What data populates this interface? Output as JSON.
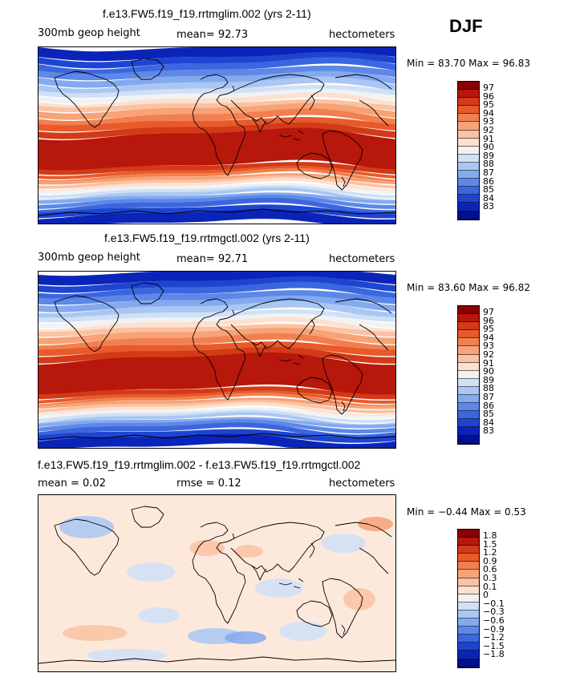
{
  "season_label": "DJF",
  "panels": [
    {
      "title": "f.e13.FW5.f19_f19.rrtmglim.002 (yrs 2-11)",
      "left_label": "300mb geop height",
      "center_label": "mean=  92.73",
      "right_label": "hectometers",
      "minmax": "Min =  83.70 Max =  96.83",
      "field": "absolute",
      "colorbar_colors": [
        "#8b0000",
        "#b8170b",
        "#d33a17",
        "#e85a2b",
        "#f2804f",
        "#f7a277",
        "#fbc2a3",
        "#fde0cf",
        "#f2f2f2",
        "#cfe0f7",
        "#a9c7f2",
        "#84a9ee",
        "#5d88e8",
        "#3b66df",
        "#1e45d1",
        "#0b24b8",
        "#00108f"
      ],
      "colorbar_labels": [
        "97",
        "96",
        "95",
        "94",
        "93",
        "92",
        "91",
        "90",
        "89",
        "88",
        "87",
        "86",
        "85",
        "84",
        "83"
      ]
    },
    {
      "title": "f.e13.FW5.f19_f19.rrtmgctl.002 (yrs 2-11)",
      "left_label": "300mb geop height",
      "center_label": "mean=  92.71",
      "right_label": "hectometers",
      "minmax": "Min =  83.60 Max =  96.82",
      "field": "absolute",
      "colorbar_colors": [
        "#8b0000",
        "#b8170b",
        "#d33a17",
        "#e85a2b",
        "#f2804f",
        "#f7a277",
        "#fbc2a3",
        "#fde0cf",
        "#f2f2f2",
        "#cfe0f7",
        "#a9c7f2",
        "#84a9ee",
        "#5d88e8",
        "#3b66df",
        "#1e45d1",
        "#0b24b8",
        "#00108f"
      ],
      "colorbar_labels": [
        "97",
        "96",
        "95",
        "94",
        "93",
        "92",
        "91",
        "90",
        "89",
        "88",
        "87",
        "86",
        "85",
        "84",
        "83"
      ]
    },
    {
      "title": "f.e13.FW5.f19_f19.rrtmglim.002 - f.e13.FW5.f19_f19.rrtmgctl.002",
      "left_label": "mean =   0.02",
      "center_label": "rmse =   0.12",
      "right_label": "hectometers",
      "minmax": "Min =  −0.44 Max =   0.53",
      "field": "difference",
      "colorbar_colors": [
        "#8b0000",
        "#b8170b",
        "#d33a17",
        "#e85a2b",
        "#f2804f",
        "#f7a277",
        "#fbc2a3",
        "#fde0cf",
        "#f2f2f2",
        "#cfe0f7",
        "#a9c7f2",
        "#84a9ee",
        "#5d88e8",
        "#3b66df",
        "#1e45d1",
        "#0b24b8",
        "#00108f"
      ],
      "colorbar_labels": [
        "1.8",
        "1.5",
        "1.2",
        "0.9",
        "0.6",
        "0.3",
        "0.1",
        "0",
        "−0.1",
        "−0.3",
        "−0.6",
        "−0.9",
        "−1.2",
        "−1.5",
        "−1.8"
      ]
    }
  ],
  "colors": {
    "map_ocean_fill_diff": "#fde9dc",
    "coastline": "#000000"
  }
}
